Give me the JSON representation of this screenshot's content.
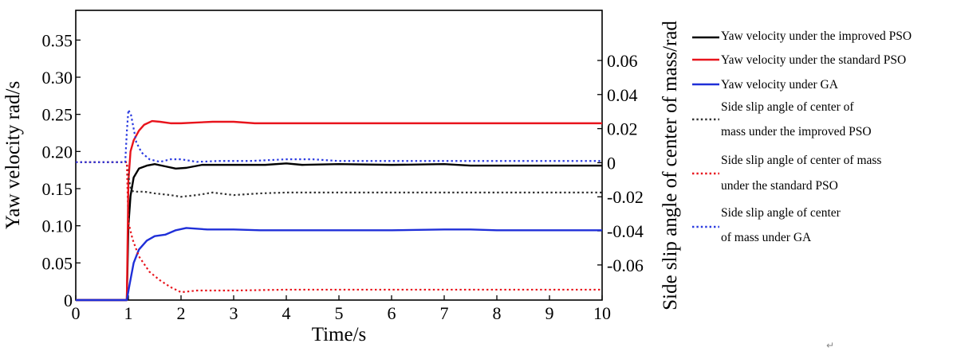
{
  "chart_data": {
    "type": "line",
    "xlabel": "Time/s",
    "ylabel": "Yaw velocity rad/s",
    "y2label": "Side slip angle of center of mass/rad",
    "xlim": [
      0,
      10
    ],
    "ylim": [
      0,
      0.39
    ],
    "y2lim": [
      -0.0806,
      0.0894
    ],
    "x_ticks": [
      0,
      1,
      2,
      3,
      4,
      5,
      6,
      7,
      8,
      9,
      10
    ],
    "x_tick_labels": [
      "0",
      "1",
      "2",
      "3",
      "4",
      "5",
      "6",
      "7",
      "8",
      "9",
      "10"
    ],
    "y_ticks": [
      0,
      0.05,
      0.1,
      0.15,
      0.2,
      0.25,
      0.3,
      0.35
    ],
    "y_tick_labels": [
      "0",
      "0.05",
      "0.10",
      "0.15",
      "0.20",
      "0.25",
      "0.30",
      "0.35"
    ],
    "y2_ticks": [
      -0.06,
      -0.04,
      -0.02,
      0,
      0.02,
      0.04,
      0.06
    ],
    "y2_tick_labels": [
      "-0.06",
      "-0.04",
      "-0.02",
      "0",
      "0.02",
      "0.04",
      "0.06"
    ],
    "grid": false,
    "legend_position": "right",
    "series": [
      {
        "name": "Yaw velocity under the improved PSO",
        "axis": "left",
        "color": "#000000",
        "dash": "solid",
        "points": [
          [
            0,
            0
          ],
          [
            0.97,
            0
          ],
          [
            1.0,
            0.1
          ],
          [
            1.04,
            0.14
          ],
          [
            1.1,
            0.165
          ],
          [
            1.2,
            0.177
          ],
          [
            1.35,
            0.181
          ],
          [
            1.5,
            0.183
          ],
          [
            1.7,
            0.18
          ],
          [
            1.9,
            0.177
          ],
          [
            2.1,
            0.178
          ],
          [
            2.4,
            0.182
          ],
          [
            3,
            0.182
          ],
          [
            3.6,
            0.182
          ],
          [
            4,
            0.184
          ],
          [
            4.3,
            0.182
          ],
          [
            5,
            0.183
          ],
          [
            6,
            0.182
          ],
          [
            7,
            0.183
          ],
          [
            7.5,
            0.181
          ],
          [
            8,
            0.181
          ],
          [
            9,
            0.181
          ],
          [
            10,
            0.181
          ]
        ]
      },
      {
        "name": "Yaw velocity under the standard PSO",
        "axis": "left",
        "color": "#e8141c",
        "dash": "solid",
        "points": [
          [
            0,
            0
          ],
          [
            0.97,
            0
          ],
          [
            1.0,
            0.16
          ],
          [
            1.04,
            0.2
          ],
          [
            1.1,
            0.215
          ],
          [
            1.2,
            0.228
          ],
          [
            1.3,
            0.236
          ],
          [
            1.45,
            0.241
          ],
          [
            1.6,
            0.24
          ],
          [
            1.8,
            0.238
          ],
          [
            2.0,
            0.238
          ],
          [
            2.3,
            0.239
          ],
          [
            2.6,
            0.24
          ],
          [
            3.0,
            0.24
          ],
          [
            3.4,
            0.238
          ],
          [
            4,
            0.238
          ],
          [
            5,
            0.238
          ],
          [
            6,
            0.238
          ],
          [
            7,
            0.238
          ],
          [
            8,
            0.238
          ],
          [
            9,
            0.238
          ],
          [
            10,
            0.238
          ]
        ]
      },
      {
        "name": "Yaw velocity under GA",
        "axis": "left",
        "color": "#1f2fd8",
        "dash": "solid",
        "points": [
          [
            0,
            0
          ],
          [
            0.97,
            0
          ],
          [
            1.02,
            0.02
          ],
          [
            1.1,
            0.05
          ],
          [
            1.2,
            0.068
          ],
          [
            1.35,
            0.08
          ],
          [
            1.5,
            0.086
          ],
          [
            1.7,
            0.088
          ],
          [
            1.9,
            0.094
          ],
          [
            2.1,
            0.097
          ],
          [
            2.5,
            0.095
          ],
          [
            3,
            0.095
          ],
          [
            3.5,
            0.094
          ],
          [
            4,
            0.094
          ],
          [
            5,
            0.094
          ],
          [
            6,
            0.094
          ],
          [
            7,
            0.095
          ],
          [
            7.5,
            0.095
          ],
          [
            8,
            0.094
          ],
          [
            9,
            0.094
          ],
          [
            10,
            0.094
          ]
        ]
      },
      {
        "name": "Side slip angle of center of mass under the improved PSO",
        "axis": "right",
        "color": "#333333",
        "dash": "dot",
        "points": [
          [
            0,
            0.0003
          ],
          [
            0.97,
            0.0003
          ],
          [
            1.0,
            -0.008
          ],
          [
            1.05,
            -0.016
          ],
          [
            1.1,
            -0.017
          ],
          [
            1.3,
            -0.017
          ],
          [
            1.5,
            -0.018
          ],
          [
            1.8,
            -0.019
          ],
          [
            2.0,
            -0.02
          ],
          [
            2.3,
            -0.019
          ],
          [
            2.6,
            -0.0175
          ],
          [
            3,
            -0.019
          ],
          [
            3.5,
            -0.018
          ],
          [
            4,
            -0.0175
          ],
          [
            5,
            -0.0175
          ],
          [
            6,
            -0.0175
          ],
          [
            7,
            -0.0175
          ],
          [
            8,
            -0.0175
          ],
          [
            9,
            -0.0175
          ],
          [
            10,
            -0.0175
          ]
        ]
      },
      {
        "name": "Side slip angle of center of mass under the standard PSO",
        "axis": "right",
        "color": "#e8141c",
        "dash": "dot",
        "points": [
          [
            0,
            0.0003
          ],
          [
            0.97,
            0.0003
          ],
          [
            1.0,
            -0.035
          ],
          [
            1.08,
            -0.045
          ],
          [
            1.2,
            -0.055
          ],
          [
            1.4,
            -0.064
          ],
          [
            1.6,
            -0.069
          ],
          [
            1.8,
            -0.073
          ],
          [
            2.0,
            -0.076
          ],
          [
            2.3,
            -0.075
          ],
          [
            3,
            -0.075
          ],
          [
            4,
            -0.0745
          ],
          [
            5,
            -0.0745
          ],
          [
            6,
            -0.0745
          ],
          [
            7,
            -0.0745
          ],
          [
            8,
            -0.0745
          ],
          [
            9,
            -0.0745
          ],
          [
            10,
            -0.0745
          ]
        ]
      },
      {
        "name": "Side slip angle of center of mass under GA",
        "axis": "right",
        "color": "#2a3ae0",
        "dash": "dot",
        "points": [
          [
            0,
            0.0003
          ],
          [
            0.94,
            0.0003
          ],
          [
            0.97,
            0.018
          ],
          [
            1.0,
            0.031
          ],
          [
            1.05,
            0.028
          ],
          [
            1.1,
            0.02
          ],
          [
            1.15,
            0.012
          ],
          [
            1.25,
            0.006
          ],
          [
            1.4,
            0.002
          ],
          [
            1.6,
            0.0005
          ],
          [
            1.8,
            0.002
          ],
          [
            2.0,
            0.002
          ],
          [
            2.3,
            0.0005
          ],
          [
            2.7,
            0.001
          ],
          [
            3.3,
            0.001
          ],
          [
            4,
            0.002
          ],
          [
            4.5,
            0.002
          ],
          [
            5,
            0.001
          ],
          [
            6,
            0.001
          ],
          [
            7,
            0.001
          ],
          [
            8,
            0.001
          ],
          [
            9,
            0.001
          ],
          [
            10,
            0.001
          ]
        ]
      }
    ]
  }
}
